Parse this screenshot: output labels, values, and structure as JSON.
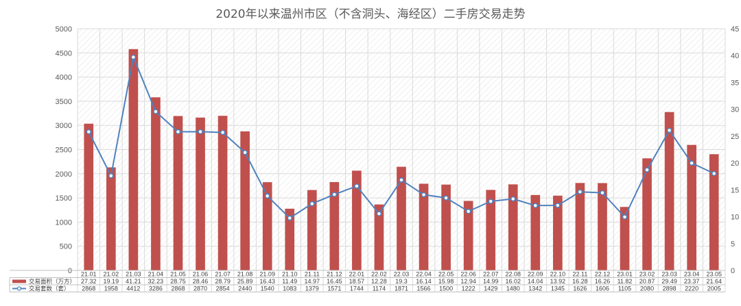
{
  "chart_data": {
    "type": "bar+line",
    "title": "2020年以来温州市区（不含洞头、海经区）二手房交易走势",
    "categories": [
      "21.01",
      "21.02",
      "21.03",
      "21.04",
      "21.05",
      "21.06",
      "21.07",
      "21.08",
      "21.09",
      "21.10",
      "21.11",
      "21.12",
      "22.01",
      "22.02",
      "22.03",
      "22.04",
      "22.05",
      "22.06",
      "22.07",
      "22.08",
      "22.09",
      "22.10",
      "22.11",
      "22.12",
      "23.01",
      "23.02",
      "23.03",
      "23.04",
      "23.05"
    ],
    "series": [
      {
        "name": "交易面积（万方）",
        "kind": "bar",
        "axis": "right",
        "color": "#c0504d",
        "values": [
          27.32,
          19.19,
          41.21,
          32.23,
          28.75,
          28.46,
          28.79,
          25.89,
          16.43,
          11.49,
          14.97,
          16.45,
          18.57,
          12.28,
          19.3,
          16.14,
          15.98,
          12.94,
          14.99,
          16.02,
          14.04,
          13.92,
          16.28,
          16.26,
          11.82,
          20.87,
          29.49,
          23.37,
          21.64
        ],
        "labels": [
          "27.32",
          "19.19",
          "41.21",
          "32.23",
          "28.75",
          "28.46",
          "28.79",
          "25.89",
          "16.43",
          "11.49",
          "14.97",
          "16.45",
          "18.57",
          "12.28",
          "19.3",
          "16.14",
          "15.98",
          "12.94",
          "14.99",
          "16.02",
          "14.04",
          "13.92",
          "16.28",
          "16.26",
          "11.82",
          "20.87",
          "29.49",
          "23.37",
          "21.64"
        ]
      },
      {
        "name": "交易套数（套）",
        "kind": "line",
        "axis": "left",
        "color": "#4f81bd",
        "values": [
          2868,
          1958,
          4412,
          3286,
          2868,
          2870,
          2854,
          2440,
          1540,
          1083,
          1379,
          1571,
          1744,
          1174,
          1871,
          1566,
          1500,
          1222,
          1429,
          1480,
          1342,
          1345,
          1626,
          1606,
          1105,
          2080,
          2898,
          2220,
          2005
        ],
        "labels": [
          "2868",
          "1958",
          "4412",
          "3286",
          "2868",
          "2870",
          "2854",
          "2440",
          "1540",
          "1083",
          "1379",
          "1571",
          "1744",
          "1174",
          "1871",
          "1566",
          "1500",
          "1222",
          "1429",
          "1480",
          "1342",
          "1345",
          "1626",
          "1606",
          "1105",
          "2080",
          "2898",
          "2220",
          "2005"
        ]
      }
    ],
    "y_left": {
      "min": 0,
      "max": 5000,
      "step": 500,
      "ticks": [
        "0",
        "500",
        "1000",
        "1500",
        "2000",
        "2500",
        "3000",
        "3500",
        "4000",
        "4500",
        "5000"
      ]
    },
    "y_right": {
      "min": 0,
      "max": 45,
      "step": 5,
      "ticks": [
        "0",
        "5",
        "10",
        "15",
        "20",
        "25",
        "30",
        "35",
        "40",
        "45"
      ]
    },
    "grid": true,
    "legend": "data-table",
    "plot_background": "diagonal-hatch"
  }
}
